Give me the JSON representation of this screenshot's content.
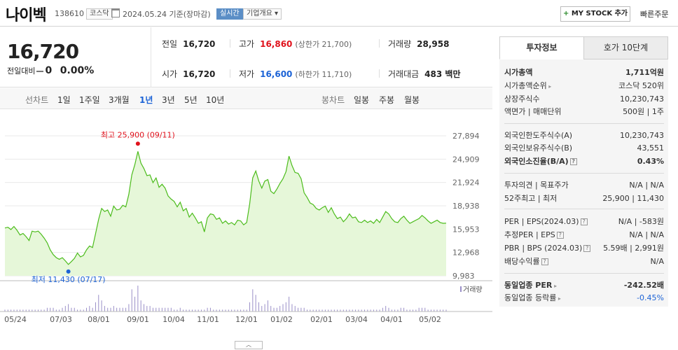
{
  "header": {
    "name": "나이벡",
    "code": "138610",
    "market": "코스닥",
    "date": "2024.05.24 기준(장마감)",
    "realtime": "실시간",
    "company_info": "기업개요 ▾",
    "mystock_label": "MY STOCK 추가",
    "quick_order": "빠른주문"
  },
  "price": {
    "current": "16,720",
    "change_label": "전일대비",
    "change_value": "0",
    "change_pct": "0.00%",
    "prev_close_label": "전일",
    "prev_close": "16,720",
    "high_label": "고가",
    "high": "16,860",
    "upper_limit": "(상한가 21,700)",
    "volume_label": "거래량",
    "volume": "28,958",
    "open_label": "시가",
    "open": "16,720",
    "low_label": "저가",
    "low": "16,600",
    "lower_limit": "(하한가 11,710)",
    "amount_label": "거래대금",
    "amount": "483 백만"
  },
  "chart_tabs": {
    "line_label": "선차트",
    "line_periods": [
      "1일",
      "1주일",
      "3개월",
      "1년",
      "3년",
      "5년",
      "10년"
    ],
    "active_period": "1년",
    "candle_label": "봉차트",
    "candle_periods": [
      "일봉",
      "주봉",
      "월봉"
    ]
  },
  "chart_data": {
    "type": "area",
    "x_ticks": [
      "05/24",
      "07/03",
      "08/01",
      "09/01",
      "10/04",
      "11/01",
      "12/01",
      "01/02",
      "02/01",
      "03/04",
      "04/01",
      "05/02"
    ],
    "y_ticks": [
      "27,894",
      "24,909",
      "21,924",
      "18,938",
      "15,953",
      "12,968",
      "9,983"
    ],
    "ylim": [
      9983,
      27894
    ],
    "max_annotation": "최고 25,900 (09/11)",
    "min_annotation": "최저 11,430 (07/17)",
    "volume_label": "거래량",
    "colors": {
      "line": "#4cbc1c",
      "fill": "#e6f7d9",
      "max": "#e0121c",
      "min": "#1c63d6",
      "volume": "#9a8fc8"
    },
    "series": [
      {
        "values": [
          16100,
          16200,
          15900,
          16300,
          15800,
          15200,
          15400,
          15000,
          14500,
          15700,
          15600,
          15700,
          15300,
          14800,
          14200,
          13300,
          12700,
          12300,
          12100,
          12300,
          11900,
          11430,
          11800,
          12200,
          12900,
          12400,
          12600,
          13300,
          13800,
          13600,
          15400,
          17200,
          18600,
          18200,
          18400,
          17600,
          18900,
          18400,
          18500,
          19000,
          18800,
          20400,
          22900,
          24200,
          25900,
          24400,
          23700,
          22800,
          22900,
          21900,
          22500,
          21300,
          21700,
          21200,
          20200,
          19800,
          19500,
          18800,
          19400,
          18300,
          18600,
          17500,
          18000,
          17400,
          16700,
          16900,
          15600,
          17400,
          17900,
          17800,
          17200,
          17400,
          16700,
          17000,
          16600,
          16800,
          16500,
          17100,
          17000,
          16500,
          16800,
          19200,
          22500,
          23400,
          22100,
          21200,
          22100,
          22300,
          20800,
          20500,
          21100,
          21800,
          22400,
          23300,
          25300,
          24100,
          23200,
          23100,
          22400,
          20600,
          20000,
          19300,
          19100,
          18600,
          18400,
          18700,
          18900,
          18100,
          18700,
          17900,
          17300,
          17500,
          16900,
          17300,
          17900,
          17400,
          17500,
          16900,
          16800,
          17100,
          16800,
          17000,
          16700,
          17200,
          16800,
          17500,
          18200,
          17900,
          17300,
          16900,
          16800,
          17300,
          17600,
          17100,
          16700,
          16900,
          17100,
          17300,
          17700,
          17400,
          17000,
          16700,
          16900,
          17100,
          16800,
          16700,
          16720
        ]
      }
    ],
    "volume_values": [
      1,
      1,
      1,
      1,
      1,
      1,
      1,
      1,
      1,
      1,
      1,
      1,
      1,
      1,
      2,
      2,
      2,
      1,
      1,
      2,
      3,
      4,
      2,
      2,
      1,
      1,
      1,
      2,
      3,
      2,
      5,
      9,
      6,
      3,
      2,
      2,
      3,
      2,
      2,
      2,
      2,
      4,
      12,
      8,
      14,
      6,
      4,
      3,
      3,
      2,
      2,
      2,
      2,
      2,
      2,
      2,
      1,
      1,
      2,
      1,
      1,
      1,
      1,
      1,
      1,
      1,
      1,
      2,
      2,
      1,
      1,
      1,
      1,
      1,
      1,
      1,
      1,
      1,
      1,
      1,
      1,
      5,
      12,
      9,
      5,
      3,
      4,
      6,
      3,
      2,
      2,
      3,
      4,
      5,
      8,
      4,
      3,
      2,
      2,
      2,
      1,
      1,
      1,
      1,
      1,
      1,
      1,
      1,
      1,
      1,
      1,
      1,
      1,
      1,
      1,
      1,
      1,
      1,
      1,
      1,
      1,
      1,
      1,
      1,
      1,
      2,
      3,
      2,
      1,
      1,
      1,
      2,
      2,
      1,
      1,
      1,
      1,
      2,
      2,
      2,
      1,
      1,
      1,
      1,
      1,
      1,
      1
    ]
  },
  "panel": {
    "tab_info": "투자정보",
    "tab_quote": "호가 10단계",
    "rows": [
      {
        "k": "시가총액",
        "v": "1,711억원",
        "bold": true
      },
      {
        "k": "시가총액순위",
        "v": "코스닥 520위",
        "arrow": true
      },
      {
        "k": "상장주식수",
        "v": "10,230,743"
      },
      {
        "k": "액면가 | 매매단위",
        "v": "500원 | 1주"
      },
      {
        "k": "외국인한도주식수(A)",
        "v": "10,230,743"
      },
      {
        "k": "외국인보유주식수(B)",
        "v": "43,551"
      },
      {
        "k": "외국인소진율(B/A)",
        "v": "0.43%",
        "bold": true,
        "q": true
      },
      {
        "k": "투자의견 | 목표주가",
        "v": "N/A | N/A"
      },
      {
        "k": "52주최고 | 최저",
        "v": "25,900 | 11,430"
      },
      {
        "k": "PER | EPS(2024.03)",
        "v": "N/A | -583원",
        "q": true
      },
      {
        "k": "추정PER | EPS",
        "v": "N/A | N/A",
        "q": true
      },
      {
        "k": "PBR | BPS (2024.03)",
        "v": "5.59배 | 2,991원",
        "q": true
      },
      {
        "k": "배당수익률",
        "v": "N/A",
        "q": true
      },
      {
        "k": "동일업종 PER",
        "v": "-242.52배",
        "bold": true,
        "arrow": true
      },
      {
        "k": "동일업종 등락률",
        "v": "-0.45%",
        "arrow": true,
        "blue": true
      }
    ]
  }
}
